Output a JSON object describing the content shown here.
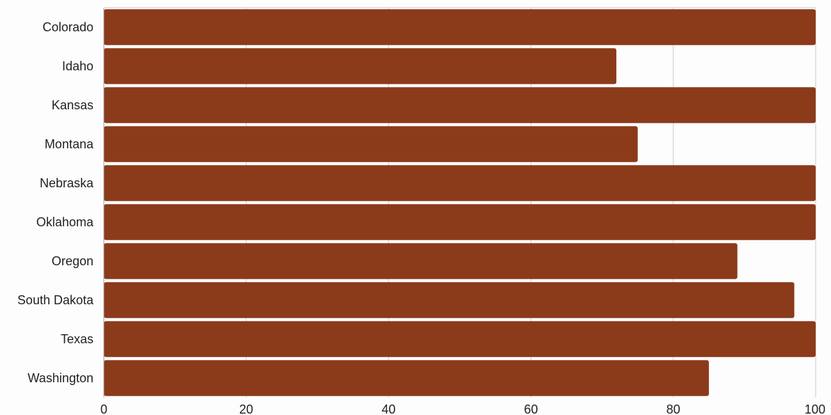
{
  "chart_data": {
    "type": "bar",
    "orientation": "horizontal",
    "categories": [
      "Colorado",
      "Idaho",
      "Kansas",
      "Montana",
      "Nebraska",
      "Oklahoma",
      "Oregon",
      "South Dakota",
      "Texas",
      "Washington"
    ],
    "values": [
      100,
      72,
      100,
      75,
      100,
      100,
      89,
      97,
      100,
      85
    ],
    "xlim": [
      0,
      100
    ],
    "xticks": [
      "0",
      "20",
      "40",
      "60",
      "80",
      "100"
    ],
    "grid": "vertical",
    "bar_color": "#8B3A1A",
    "title": "",
    "xlabel": "",
    "ylabel": ""
  }
}
